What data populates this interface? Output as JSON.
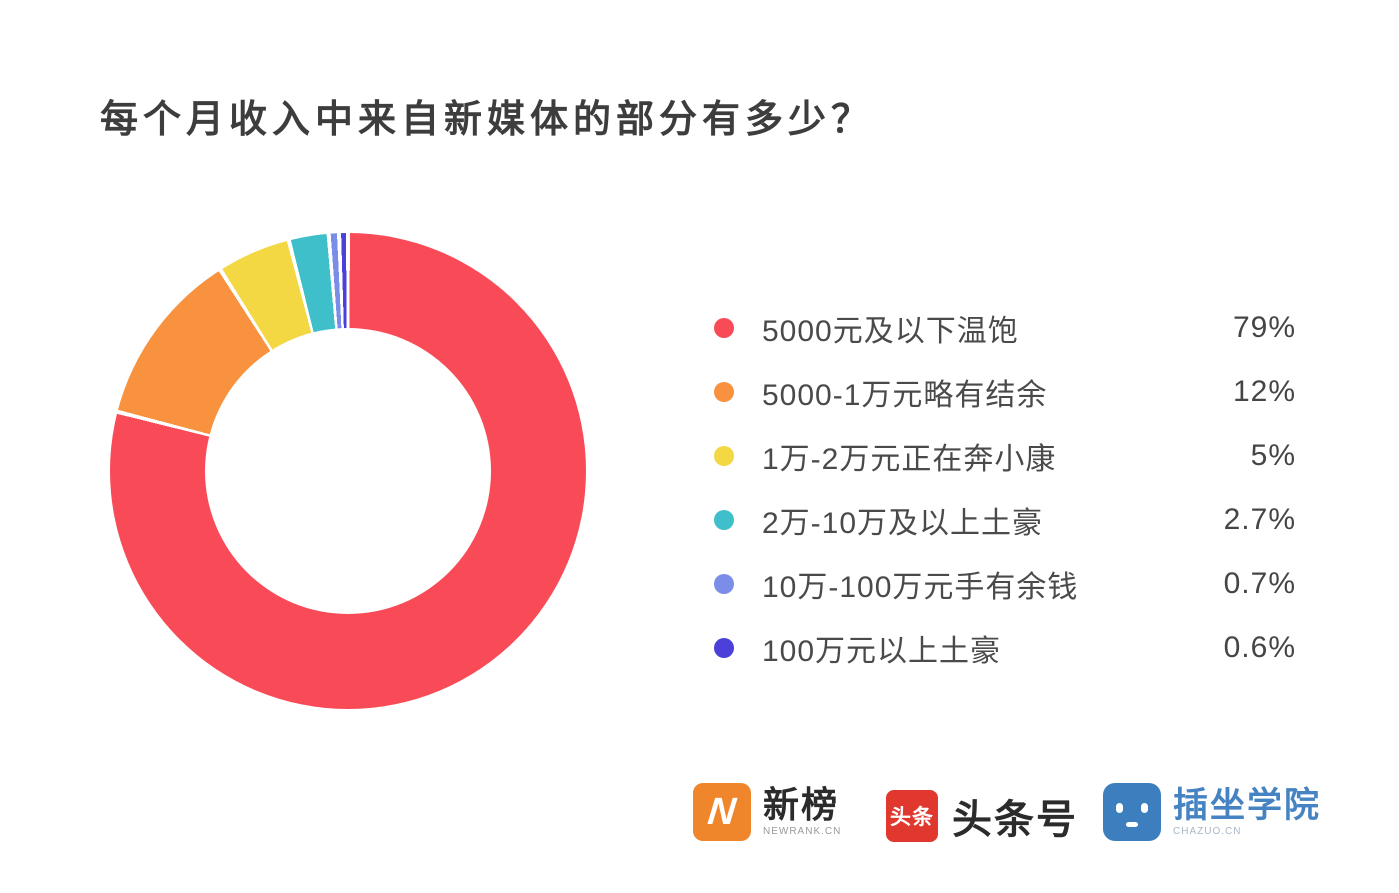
{
  "page": {
    "title": "每个月收入中来自新媒体的部分有多少？",
    "background": "#ffffff"
  },
  "chart_data": {
    "type": "pie",
    "variant": "donut",
    "title": "每个月收入中来自新媒体的部分有多少？",
    "start_angle_deg": 0,
    "direction": "clockwise",
    "legend_position": "right",
    "hole_ratio": 0.6,
    "separator_color": "#ffffff",
    "slices": [
      {
        "label": "5000元及以下温饱",
        "value": 79,
        "pct_label": "79%",
        "color": "#F84B57"
      },
      {
        "label": "5000-1万元略有结余",
        "value": 12,
        "pct_label": "12%",
        "color": "#F8923E"
      },
      {
        "label": "1万-2万元正在奔小康",
        "value": 5,
        "pct_label": "5%",
        "color": "#F3D844"
      },
      {
        "label": "2万-10万及以上土豪",
        "value": 2.7,
        "pct_label": "2.7%",
        "color": "#3FBFC9"
      },
      {
        "label": "10万-100万元手有余钱",
        "value": 0.7,
        "pct_label": "0.7%",
        "color": "#7A8DE9"
      },
      {
        "label": "100万元以上土豪",
        "value": 0.6,
        "pct_label": "0.6%",
        "color": "#4B40D9"
      }
    ]
  },
  "footer": {
    "logos": {
      "newrank": {
        "name": "新榜",
        "subtext": "NEWRANK.CN",
        "icon_letter": "N",
        "icon_color": "#F0862B"
      },
      "toutiao": {
        "name": "头条号",
        "icon_text": "头条",
        "icon_color": "#E0372E"
      },
      "chazuo": {
        "name": "插坐学院",
        "subtext": "CHAZUO.CN",
        "icon_color": "#3D7FBE",
        "text_color": "#4583C2"
      }
    }
  }
}
